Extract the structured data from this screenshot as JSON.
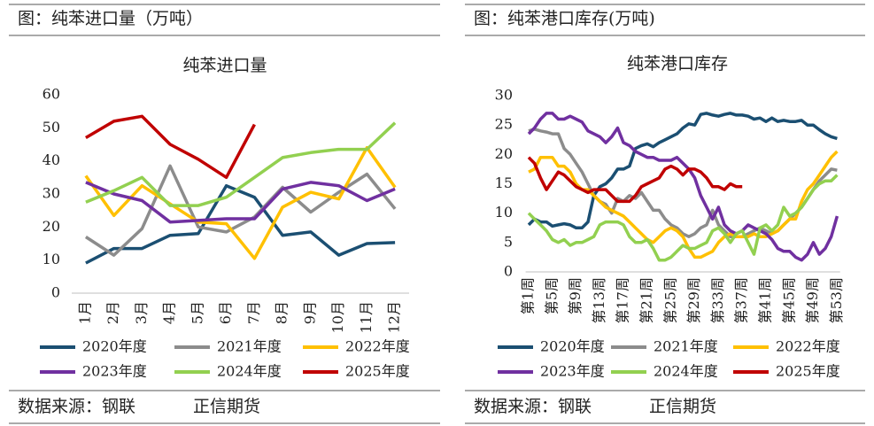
{
  "headers": [
    "图：纯苯进口量（万吨）",
    "图：纯苯港口库存(万吨)"
  ],
  "footers": [
    {
      "source": "数据来源：钢联",
      "brand": "正信期货"
    },
    {
      "source": "数据来源：钢联",
      "brand": "正信期货"
    }
  ],
  "chart_data": [
    {
      "type": "line",
      "title": "纯苯进口量",
      "categories": [
        "1月",
        "2月",
        "3月",
        "4月",
        "5月",
        "6月",
        "7月",
        "8月",
        "9月",
        "10月",
        "11月",
        "12月"
      ],
      "ylim": [
        0,
        60
      ],
      "yticks": [
        0,
        10,
        20,
        30,
        40,
        50,
        60
      ],
      "series": [
        {
          "name": "2020年度",
          "color": "#1b4f72",
          "values": [
            9.1,
            13.5,
            13.5,
            17.5,
            18,
            32.5,
            29,
            17.5,
            18.5,
            11.5,
            15,
            15.3
          ]
        },
        {
          "name": "2021年度",
          "color": "#8c8c8c",
          "values": [
            17,
            11.5,
            19.5,
            38.5,
            20,
            18.5,
            23,
            32,
            24.5,
            30.5,
            36,
            25.5
          ]
        },
        {
          "name": "2022年度",
          "color": "#ffc000",
          "values": [
            35.5,
            23.5,
            32.5,
            27,
            21.5,
            21,
            10.5,
            26,
            30.5,
            28.5,
            44,
            32
          ]
        },
        {
          "name": "2023年度",
          "color": "#7030a0",
          "values": [
            33.5,
            30,
            28,
            21.5,
            22,
            22.5,
            22.5,
            31.5,
            33.5,
            32.5,
            28,
            31.5
          ]
        },
        {
          "name": "2024年度",
          "color": "#92d050",
          "values": [
            27.5,
            31,
            35,
            26.5,
            26.5,
            29,
            35,
            41,
            42.5,
            43.5,
            43.5,
            51.5
          ]
        },
        {
          "name": "2025年度",
          "color": "#c00000",
          "values": [
            47,
            52,
            53.5,
            45,
            40.5,
            35,
            51,
            null,
            null,
            null,
            null,
            null
          ]
        }
      ]
    },
    {
      "type": "line",
      "title": "纯苯港口库存",
      "categories": [
        "第1周",
        null,
        null,
        null,
        "第5周",
        null,
        null,
        null,
        "第9周",
        null,
        null,
        null,
        "第13周",
        null,
        null,
        null,
        "第17周",
        null,
        null,
        null,
        "第21周",
        null,
        null,
        null,
        "第25周",
        null,
        null,
        null,
        "第29周",
        null,
        null,
        null,
        "第33周",
        null,
        null,
        null,
        "第37周",
        null,
        null,
        null,
        "第41周",
        null,
        null,
        null,
        "第45周",
        null,
        null,
        null,
        "第49周",
        null,
        null,
        null,
        "第53周"
      ],
      "ylim": [
        0,
        30
      ],
      "yticks": [
        0,
        5,
        10,
        15,
        20,
        25,
        30
      ],
      "series": [
        {
          "name": "2020年度",
          "color": "#1b4f72",
          "values": [
            8,
            9,
            8.5,
            8.5,
            7.8,
            8,
            8.2,
            8,
            7.5,
            7.5,
            8.5,
            13,
            14.5,
            15,
            16,
            17.5,
            17.5,
            18,
            21,
            21.5,
            21.8,
            21.3,
            22,
            22.5,
            23,
            23.5,
            24.5,
            25.2,
            25,
            26.8,
            27,
            26.7,
            26.5,
            26.8,
            27,
            26.7,
            26.7,
            26.5,
            26,
            26.2,
            25.6,
            26.2,
            25.6,
            25.8,
            25.6,
            25.6,
            25.8,
            25,
            25,
            24.2,
            23.5,
            23,
            22.7
          ]
        },
        {
          "name": "2021年度",
          "color": "#8c8c8c",
          "values": [
            24,
            24.3,
            24,
            23.8,
            23.5,
            23.5,
            21,
            20,
            18.5,
            17,
            15,
            13,
            12,
            11.5,
            10,
            12.5,
            12,
            13,
            12.5,
            13.5,
            12,
            10.5,
            10.5,
            9,
            8,
            7.5,
            6.5,
            6,
            6.5,
            7.5,
            8,
            10.5,
            8,
            7,
            6,
            6,
            6,
            6.5,
            7,
            7.5,
            7,
            6.5,
            7,
            8,
            9,
            10,
            11,
            12.5,
            14,
            15.5,
            16.5,
            17.5,
            17.3
          ]
        },
        {
          "name": "2022年度",
          "color": "#ffc000",
          "values": [
            17,
            17.5,
            19.5,
            19.5,
            19.5,
            18,
            18,
            17,
            15,
            14,
            14,
            13,
            12,
            11,
            10.5,
            10,
            9.5,
            8.5,
            7.5,
            6.5,
            5.5,
            5,
            6,
            7,
            7.5,
            7,
            6,
            4,
            2.5,
            2.5,
            3,
            3.5,
            5,
            6,
            6.5,
            6,
            6,
            6,
            6.5,
            6,
            6,
            6.5,
            7,
            8,
            9,
            9,
            12,
            14,
            15,
            16.5,
            18,
            19.5,
            20.5
          ]
        },
        {
          "name": "2023年度",
          "color": "#7030a0",
          "values": [
            23.5,
            24.5,
            26,
            27,
            27,
            26,
            26,
            26.5,
            26,
            25.5,
            24,
            23.5,
            23,
            22,
            23,
            24.5,
            22,
            21.5,
            20.5,
            20,
            19.5,
            19.5,
            19,
            19,
            19,
            19.5,
            18.5,
            17.5,
            16,
            13,
            11,
            9,
            11,
            8,
            7,
            6.5,
            7,
            8,
            7.5,
            7,
            6.5,
            5.5,
            4,
            3.5,
            3.5,
            2.5,
            2,
            3,
            5,
            3,
            4,
            6,
            9.5
          ]
        },
        {
          "name": "2024年度",
          "color": "#92d050",
          "values": [
            10,
            9,
            8,
            7,
            5.5,
            5,
            5.5,
            4.5,
            5,
            5,
            5.5,
            6,
            8,
            8.5,
            8.5,
            8.5,
            8,
            6,
            5,
            5,
            5.5,
            4,
            2,
            2,
            2.5,
            3.5,
            4.5,
            4,
            4,
            4.5,
            5,
            7,
            7.5,
            6.5,
            5,
            6.5,
            7,
            5,
            3,
            7.5,
            8,
            7,
            8,
            11,
            9.5,
            10,
            11,
            12.5,
            14,
            15,
            15.5,
            15.5,
            16.5
          ]
        },
        {
          "name": "2025年度",
          "color": "#c00000",
          "values": [
            19.5,
            18.5,
            16,
            14,
            15.5,
            17,
            16.5,
            15.5,
            14.5,
            14,
            13.5,
            14,
            14,
            14,
            13,
            12,
            12,
            12,
            13,
            14.5,
            15,
            15.5,
            16,
            17.5,
            18,
            17.5,
            16.5,
            17.5,
            17.5,
            17,
            16,
            14.5,
            14.5,
            14,
            15,
            14.5,
            14.5,
            null,
            null,
            null,
            null,
            null,
            null,
            null,
            null,
            null,
            null,
            null,
            null,
            null,
            null,
            null,
            null
          ]
        }
      ]
    }
  ]
}
